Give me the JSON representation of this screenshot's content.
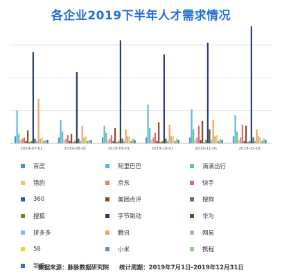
{
  "title": "各企业2019下半年人才需求情况",
  "footer": {
    "source": "数据来源：脉脉数据研究院",
    "period": "统计周期：2019年7月1日-2019年12月31日"
  },
  "chart_data": {
    "type": "bar",
    "title": "各企业2019下半年人才需求情况",
    "xlabel": "",
    "ylabel": "",
    "ylim": [
      0,
      100
    ],
    "grid": true,
    "legend_position": "bottom",
    "categories": [
      "2019-07-01",
      "2019-08-01",
      "2019-09-01",
      "2019-10-01",
      "2019-11-01",
      "2019-12-01"
    ],
    "series": [
      {
        "name": "百度",
        "color": "#4a90d9",
        "values": [
          6,
          5,
          5,
          5,
          5,
          6
        ]
      },
      {
        "name": "阿里巴巴",
        "color": "#62b4e6",
        "values": [
          28,
          20,
          15,
          33,
          29,
          24
        ]
      },
      {
        "name": "滴滴出行",
        "color": "#5ccb8c",
        "values": [
          8,
          10,
          9,
          13,
          12,
          10
        ]
      },
      {
        "name": "猎豹",
        "color": "#f5c46a",
        "values": [
          3,
          3,
          3,
          3,
          3,
          3
        ]
      },
      {
        "name": "京东",
        "color": "#ef7b7b",
        "values": [
          4,
          4,
          4,
          5,
          5,
          5
        ]
      },
      {
        "name": "快手",
        "color": "#e8607a",
        "values": [
          5,
          7,
          7,
          9,
          15,
          16
        ]
      },
      {
        "name": "360",
        "color": "#2a5f8f",
        "values": [
          2,
          2,
          2,
          2,
          3,
          2
        ]
      },
      {
        "name": "美团点评",
        "color": "#8a4a1c",
        "values": [
          11,
          8,
          13,
          18,
          19,
          15
        ]
      },
      {
        "name": "搜狗",
        "color": "#6b6b6b",
        "values": [
          1,
          1,
          1,
          1,
          1,
          1
        ]
      },
      {
        "name": "搜狐",
        "color": "#8a7a1f",
        "values": [
          2,
          2,
          2,
          2,
          3,
          2
        ]
      },
      {
        "name": "字节跳动",
        "color": "#2b3a78",
        "values": [
          78,
          61,
          88,
          76,
          86,
          100
        ]
      },
      {
        "name": "华为",
        "color": "#3e6b2a",
        "values": [
          4,
          4,
          4,
          4,
          12,
          5
        ]
      },
      {
        "name": "拼多多",
        "color": "#8fb3e0",
        "values": [
          2,
          2,
          2,
          2,
          3,
          2
        ]
      },
      {
        "name": "腾讯",
        "color": "#f5a05a",
        "values": [
          38,
          15,
          12,
          16,
          20,
          12
        ]
      },
      {
        "name": "网易",
        "color": "#b3b3b3",
        "values": [
          4,
          5,
          6,
          6,
          6,
          6
        ]
      },
      {
        "name": "58",
        "color": "#f5d33a",
        "values": [
          5,
          6,
          6,
          6,
          7,
          5
        ]
      },
      {
        "name": "小米",
        "color": "#6f86d6",
        "values": [
          2,
          2,
          2,
          2,
          2,
          2
        ]
      },
      {
        "name": "携程",
        "color": "#8fd18a",
        "values": [
          3,
          3,
          4,
          4,
          4,
          4
        ]
      },
      {
        "name": "新浪",
        "color": "#3a72b8",
        "values": [
          3,
          3,
          3,
          3,
          3,
          3
        ]
      }
    ]
  }
}
